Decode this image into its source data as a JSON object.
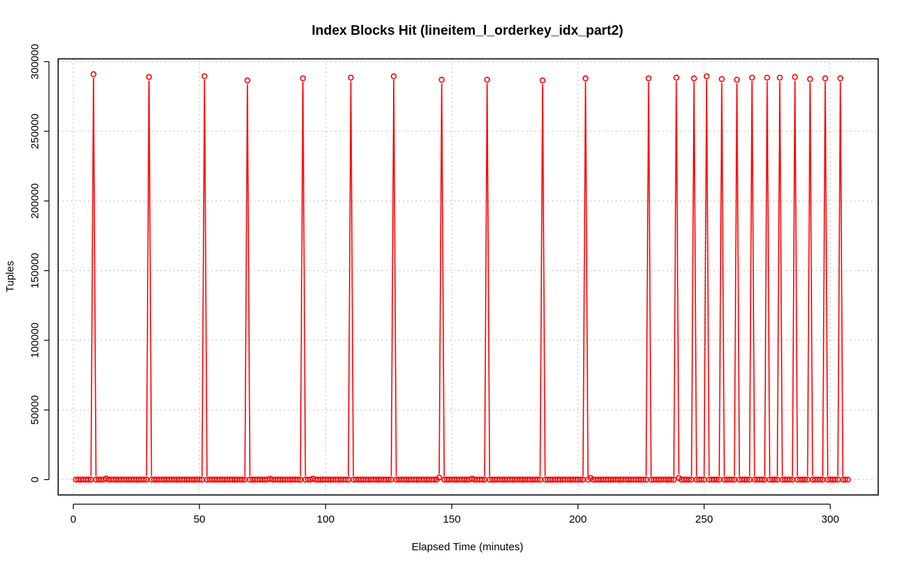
{
  "chart_data": {
    "type": "line",
    "title": "Index Blocks Hit (lineitem_l_orderkey_idx_part2)",
    "xlabel": "Elapsed Time (minutes)",
    "ylabel": "Tuples",
    "xlim": [
      -6,
      319
    ],
    "ylim": [
      -11000,
      302000
    ],
    "x_ticks": [
      0,
      50,
      100,
      150,
      200,
      250,
      300
    ],
    "y_ticks": [
      0,
      50000,
      100000,
      150000,
      200000,
      250000,
      300000
    ],
    "x_tick_labels": [
      "0",
      "50",
      "100",
      "150",
      "200",
      "250",
      "300"
    ],
    "y_tick_labels": [
      "0",
      "50000",
      "100000",
      "150000",
      "200000",
      "250000",
      "300000"
    ],
    "grid": true,
    "line_type": "both (lines and points)",
    "color": "#ff0000",
    "x_range": [
      1,
      307
    ],
    "baseline_value": 0,
    "peaks": [
      {
        "x": 8,
        "y": 291000
      },
      {
        "x": 30,
        "y": 289000
      },
      {
        "x": 52,
        "y": 289500
      },
      {
        "x": 69,
        "y": 286500
      },
      {
        "x": 91,
        "y": 288000
      },
      {
        "x": 110,
        "y": 288500
      },
      {
        "x": 127,
        "y": 289500
      },
      {
        "x": 146,
        "y": 287000
      },
      {
        "x": 164,
        "y": 287000
      },
      {
        "x": 186,
        "y": 286500
      },
      {
        "x": 203,
        "y": 288000
      },
      {
        "x": 228,
        "y": 288000
      },
      {
        "x": 239,
        "y": 288500
      },
      {
        "x": 246,
        "y": 288000
      },
      {
        "x": 251,
        "y": 289500
      },
      {
        "x": 257,
        "y": 287500
      },
      {
        "x": 263,
        "y": 287000
      },
      {
        "x": 269,
        "y": 288500
      },
      {
        "x": 275,
        "y": 288500
      },
      {
        "x": 280,
        "y": 288500
      },
      {
        "x": 286,
        "y": 289000
      },
      {
        "x": 292,
        "y": 287500
      },
      {
        "x": 298,
        "y": 288000
      },
      {
        "x": 304,
        "y": 288000
      }
    ],
    "small_bumps": [
      {
        "x": 13,
        "y": 800
      },
      {
        "x": 78,
        "y": 600
      },
      {
        "x": 95,
        "y": 700
      },
      {
        "x": 145,
        "y": 1500
      },
      {
        "x": 158,
        "y": 700
      },
      {
        "x": 205,
        "y": 1200
      },
      {
        "x": 240,
        "y": 1200
      }
    ]
  }
}
